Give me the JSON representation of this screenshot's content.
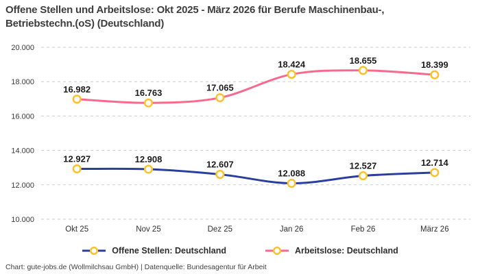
{
  "title": "Offene Stellen und Arbeitslose: Okt 2025 - März 2026 für Berufe Maschinenbau-, Betriebstechn.(oS) (Deutschland)",
  "footer": "Chart: gute-jobs.de (Wollmilchsau GmbH) | Datenquelle: Bundesagentur für Arbeit",
  "chart_data": {
    "type": "line",
    "categories": [
      "Okt 25",
      "Nov 25",
      "Dez 25",
      "Jan 26",
      "Feb 26",
      "März 26"
    ],
    "series": [
      {
        "name": "Offene Stellen: Deutschland",
        "values": [
          12927,
          12908,
          12607,
          12088,
          12527,
          12714
        ],
        "labels": [
          "12.927",
          "12.908",
          "12.607",
          "12.088",
          "12.527",
          "12.714"
        ],
        "color": "#2a3f9d"
      },
      {
        "name": "Arbeitslose: Deutschland",
        "values": [
          16982,
          16763,
          17065,
          18424,
          18655,
          18399
        ],
        "labels": [
          "16.982",
          "16.763",
          "17.065",
          "18.424",
          "18.655",
          "18.399"
        ],
        "color": "#f8698d"
      }
    ],
    "yticks": [
      10000,
      12000,
      14000,
      16000,
      18000,
      20000
    ],
    "ytick_labels": [
      "10.000",
      "12.000",
      "14.000",
      "16.000",
      "18.000",
      "20.000"
    ],
    "ylim": [
      10000,
      20000
    ],
    "grid": "dashed-horizontal",
    "legend_position": "bottom",
    "marker": {
      "fill": "#ffffff",
      "stroke": "#fbc12d"
    }
  }
}
